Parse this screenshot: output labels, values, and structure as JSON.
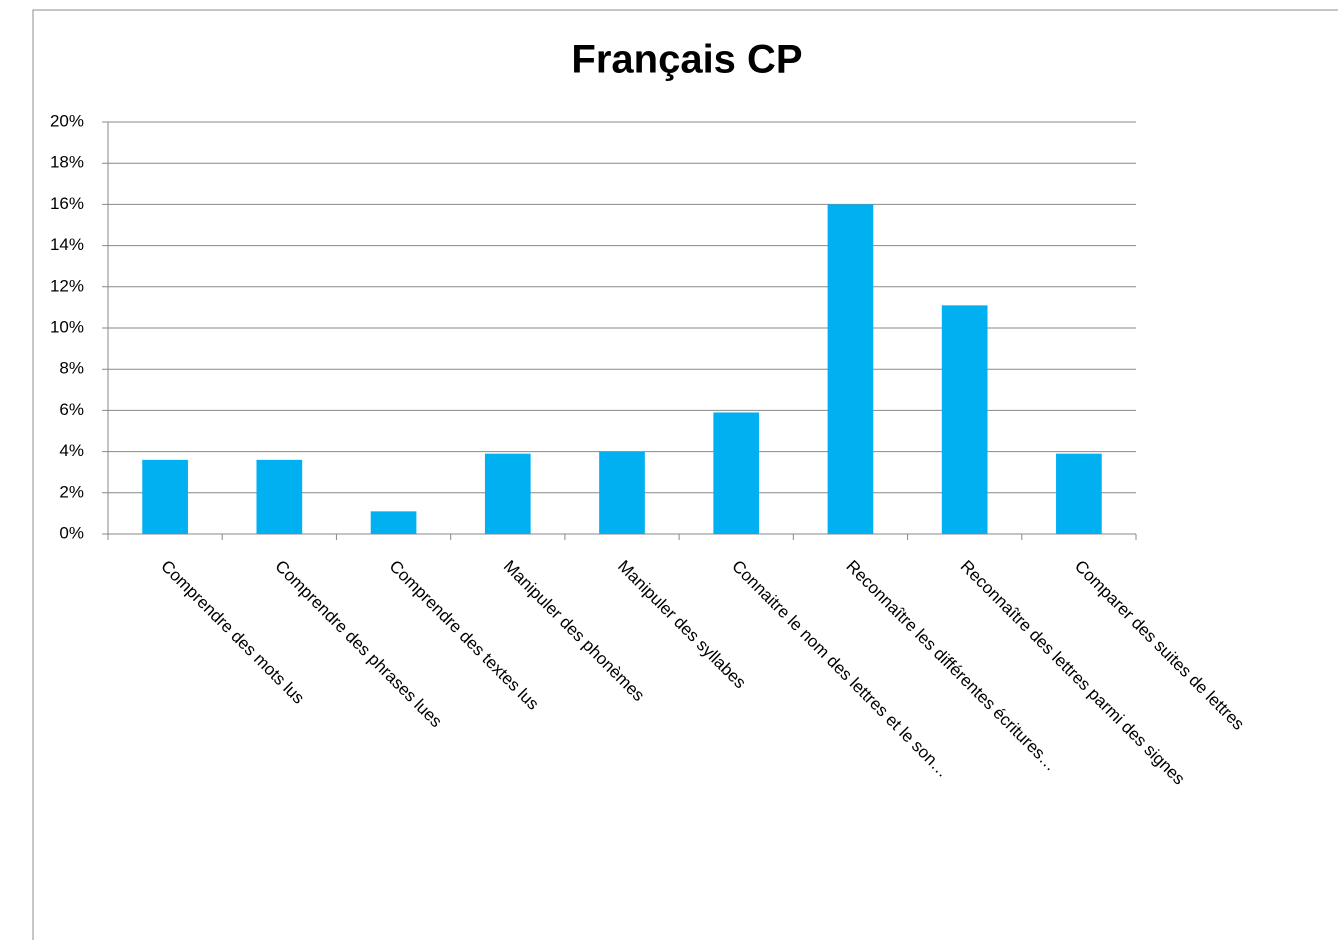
{
  "chart_data": {
    "type": "bar",
    "title": "Français CP",
    "categories": [
      "Comprendre des mots lus",
      "Comprendre des phrases lues",
      "Comprendre des textes lus",
      "Manipuler des phonèmes",
      "Manipuler des syllabes",
      "Connaitre le nom des lettres et le son…",
      "Reconnaître les différentes écritures…",
      "Reconnaître des lettres parmi des signes",
      "Comparer des suites de lettres"
    ],
    "values": [
      3.6,
      3.6,
      1.1,
      3.9,
      4.0,
      5.9,
      16.0,
      11.1,
      3.9
    ],
    "color": "#00b0f0",
    "ylim": [
      0,
      20
    ],
    "yticks": [
      {
        "value": 0,
        "label": "0%"
      },
      {
        "value": 2,
        "label": "2%"
      },
      {
        "value": 4,
        "label": "4%"
      },
      {
        "value": 6,
        "label": "6%"
      },
      {
        "value": 8,
        "label": "8%"
      },
      {
        "value": 10,
        "label": "10%"
      },
      {
        "value": 12,
        "label": "12%"
      },
      {
        "value": 14,
        "label": "14%"
      },
      {
        "value": 16,
        "label": "16%"
      },
      {
        "value": 18,
        "label": "18%"
      },
      {
        "value": 20,
        "label": "20%"
      }
    ],
    "grid": true
  }
}
